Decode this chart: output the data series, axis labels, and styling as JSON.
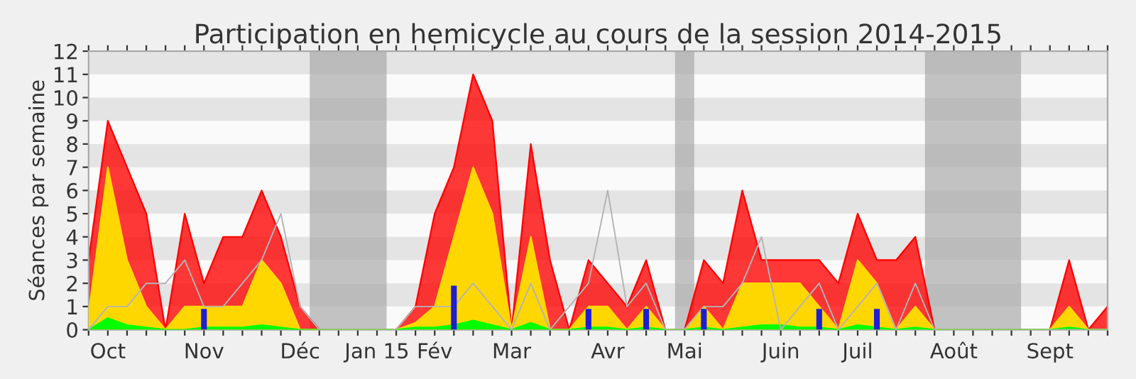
{
  "chart_data": {
    "type": "area",
    "title": "Participation en hemicycle au cours de la session 2014-2015",
    "ylabel": "Séances par semaine",
    "categories": [
      null,
      "Oct",
      null,
      null,
      null,
      null,
      "Nov",
      null,
      null,
      null,
      null,
      "Déc",
      null,
      null,
      null,
      "Jan 15",
      null,
      null,
      "Fév",
      null,
      null,
      null,
      "Mar",
      null,
      null,
      null,
      null,
      "Avr",
      null,
      null,
      null,
      "Mai",
      null,
      null,
      null,
      null,
      "Juin",
      null,
      null,
      null,
      "Juil",
      null,
      null,
      null,
      null,
      "Août",
      null,
      null,
      null,
      null,
      "Sept",
      null,
      null,
      null
    ],
    "series": [
      {
        "color": "#ff0000",
        "values": [
          3,
          9,
          7,
          5,
          0,
          5,
          2,
          4,
          4,
          6,
          4,
          1,
          0,
          0,
          0,
          0,
          0,
          1,
          5,
          7,
          11,
          9,
          0,
          8,
          3,
          0,
          3,
          2,
          1,
          3,
          0,
          0,
          3,
          2,
          6,
          3,
          3,
          3,
          3,
          2,
          5,
          3,
          3,
          4,
          0,
          0,
          0,
          0,
          0,
          0,
          0,
          3,
          0,
          1
        ]
      },
      {
        "color": "#ffd700",
        "values": [
          0.7,
          7,
          3,
          1,
          0,
          1,
          1,
          1,
          1,
          3,
          2,
          0,
          0,
          0,
          0,
          0,
          0,
          0.3,
          1,
          4,
          7,
          5,
          0,
          4,
          0,
          0,
          1,
          1,
          0,
          1,
          0,
          0,
          1,
          0,
          2,
          2,
          2,
          2,
          1,
          0,
          3,
          2,
          0,
          1,
          0,
          0,
          0,
          0,
          0,
          0,
          0,
          1,
          0,
          0
        ]
      },
      {
        "color": "#00ff00",
        "values": [
          0,
          0.5,
          0.2,
          0.1,
          0,
          0,
          0.1,
          0.1,
          0.1,
          0.2,
          0.1,
          0,
          0,
          0,
          0,
          0,
          0,
          0.1,
          0.1,
          0.2,
          0.4,
          0.2,
          0,
          0.3,
          0,
          0,
          0.1,
          0.1,
          0,
          0.1,
          0,
          0,
          0.1,
          0,
          0.1,
          0.2,
          0.2,
          0.1,
          0.1,
          0,
          0.2,
          0.1,
          0,
          0.1,
          0,
          0,
          0,
          0,
          0,
          0,
          0,
          0.1,
          0,
          0
        ]
      },
      {
        "type": "line",
        "color": "#b4b4b4",
        "values": [
          0,
          1,
          1,
          2,
          2,
          3,
          1,
          1,
          2,
          3,
          5,
          1,
          0,
          0,
          0,
          0,
          0,
          1,
          1,
          1,
          2,
          1,
          0,
          2,
          0,
          1,
          2,
          6,
          1,
          2,
          0,
          0,
          1,
          1,
          2,
          4,
          0,
          1,
          2,
          0,
          1,
          2,
          0,
          2,
          0,
          0,
          0,
          0,
          0,
          0,
          0,
          0,
          0,
          0
        ]
      },
      {
        "type": "bar",
        "color": "#1e1ed2",
        "values": [
          0,
          0,
          0,
          0,
          0,
          0,
          0.9,
          0,
          0,
          0,
          0,
          0,
          0,
          0,
          0,
          0,
          0,
          0,
          0,
          1.9,
          0,
          0,
          0,
          0,
          0,
          0,
          0.9,
          0,
          0,
          0.9,
          0,
          0,
          0.9,
          0,
          0,
          0,
          0,
          0,
          0.9,
          0,
          0,
          0.9,
          0,
          0,
          0,
          0,
          0,
          0,
          0,
          0,
          0,
          0,
          0,
          0
        ]
      }
    ],
    "ylim": [
      0,
      12
    ],
    "yticks": [
      0,
      1,
      2,
      3,
      4,
      5,
      6,
      7,
      8,
      9,
      10,
      11,
      12
    ]
  }
}
